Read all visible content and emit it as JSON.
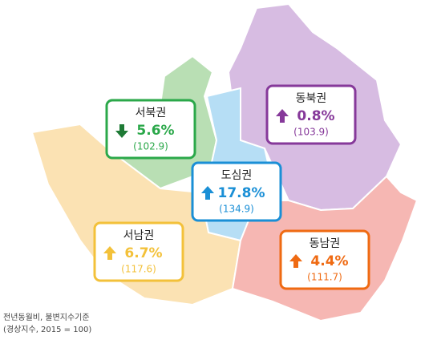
{
  "regions": [
    {
      "name": "서북권",
      "change": "5.6%",
      "index": "(102.9)",
      "trend": "down",
      "color": "#2ba84a",
      "fill": "#b9dfb4"
    },
    {
      "name": "동북권",
      "change": "0.8%",
      "index": "(103.9)",
      "trend": "up",
      "color": "#86399a",
      "fill": "#d7bce2"
    },
    {
      "name": "도심권",
      "change": "17.8%",
      "index": "(134.9)",
      "trend": "up",
      "color": "#1a8fd6",
      "fill": "#b6def5"
    },
    {
      "name": "서남권",
      "change": "6.7%",
      "index": "(117.6)",
      "trend": "up",
      "color": "#f3c13a",
      "fill": "#fbe2b3"
    },
    {
      "name": "동남권",
      "change": "4.4%",
      "index": "(111.7)",
      "trend": "up",
      "color": "#ef6a12",
      "fill": "#f6b7b3"
    }
  ],
  "note": [
    "전년동월비, 불변지수기준",
    "(경상지수, 2015 = 100)"
  ]
}
